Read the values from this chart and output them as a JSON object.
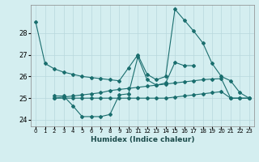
{
  "xlabel": "Humidex (Indice chaleur)",
  "background_color": "#d4eef0",
  "grid_color": "#b8d8dc",
  "line_color": "#1a6e6e",
  "ylim": [
    23.7,
    29.3
  ],
  "yticks": [
    24,
    25,
    26,
    27,
    28
  ],
  "line1_x": [
    0,
    1,
    2,
    3,
    4,
    5,
    6,
    7,
    8,
    9,
    10,
    11,
    12,
    13,
    14,
    15,
    16,
    17,
    18,
    19,
    20,
    21,
    22,
    23
  ],
  "line1_y": [
    28.5,
    26.6,
    26.35,
    26.2,
    26.1,
    26.0,
    25.95,
    25.9,
    25.85,
    25.8,
    26.4,
    27.0,
    26.1,
    25.85,
    26.0,
    29.1,
    28.6,
    28.1,
    27.55,
    26.6,
    26.0,
    25.8,
    25.25,
    25.0
  ],
  "line2_x": [
    2,
    3,
    4,
    5,
    6,
    7,
    8,
    9,
    10,
    11,
    12,
    13,
    14,
    15,
    16,
    17
  ],
  "line2_y": [
    25.1,
    25.1,
    24.65,
    24.15,
    24.15,
    24.15,
    24.25,
    25.15,
    25.2,
    26.9,
    25.85,
    25.6,
    25.7,
    26.65,
    26.5,
    26.5
  ],
  "line3_x": [
    2,
    3,
    4,
    5,
    6,
    7,
    8,
    9,
    10,
    11,
    12,
    13,
    14,
    15,
    16,
    17,
    18,
    19,
    20,
    21,
    22,
    23
  ],
  "line3_y": [
    25.0,
    25.05,
    25.1,
    25.15,
    25.2,
    25.25,
    25.35,
    25.4,
    25.45,
    25.5,
    25.55,
    25.6,
    25.65,
    25.7,
    25.75,
    25.8,
    25.85,
    25.88,
    25.9,
    25.0,
    25.0,
    25.0
  ],
  "line4_x": [
    2,
    3,
    4,
    5,
    6,
    7,
    8,
    9,
    10,
    11,
    12,
    13,
    14,
    15,
    16,
    17,
    18,
    19,
    20,
    21,
    22,
    23
  ],
  "line4_y": [
    25.0,
    25.0,
    25.0,
    25.0,
    25.0,
    25.0,
    25.0,
    25.0,
    25.0,
    25.0,
    25.0,
    25.0,
    25.0,
    25.05,
    25.1,
    25.15,
    25.2,
    25.25,
    25.3,
    25.0,
    25.0,
    25.0
  ]
}
